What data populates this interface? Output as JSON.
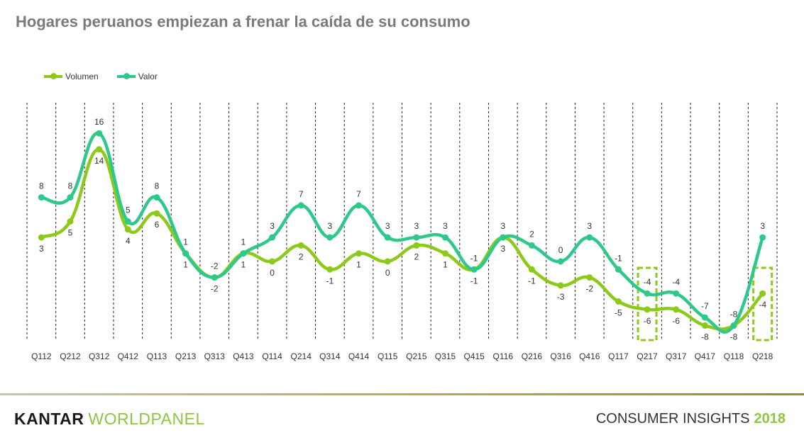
{
  "title": "Hogares peruanos empiezan a frenar la caída de su consumo",
  "footer": {
    "brand_part1": "KANTAR",
    "brand_part2": "WORLDPANEL",
    "insights_text": "CONSUMER INSIGHTS",
    "insights_year": "2018"
  },
  "colors": {
    "volumen": "#8dc919",
    "valor": "#2ec98a",
    "highlight": "#8dc919"
  },
  "chart_data": {
    "type": "line",
    "categories": [
      "Q112",
      "Q212",
      "Q312",
      "Q412",
      "Q113",
      "Q213",
      "Q313",
      "Q413",
      "Q114",
      "Q214",
      "Q314",
      "Q414",
      "Q115",
      "Q215",
      "Q315",
      "Q415",
      "Q116",
      "Q216",
      "Q316",
      "Q416",
      "Q117",
      "Q217",
      "Q317",
      "Q417",
      "Q118",
      "Q218"
    ],
    "series": [
      {
        "name": "Volumen",
        "values": [
          3,
          5,
          14,
          4,
          6,
          1,
          -2,
          1,
          0,
          2,
          -1,
          1,
          0,
          2,
          1,
          -1,
          3,
          -1,
          -3,
          -2,
          -5,
          -6,
          -6,
          -8,
          -8,
          -4
        ]
      },
      {
        "name": "Valor",
        "values": [
          8,
          8,
          16,
          5,
          8,
          1,
          -2,
          1,
          3,
          7,
          3,
          7,
          3,
          3,
          3,
          -1,
          3,
          2,
          0,
          3,
          -1,
          -4,
          -4,
          -7,
          -8,
          3
        ]
      }
    ],
    "highlighted_categories": [
      "Q217",
      "Q218"
    ],
    "grid": "vertical-dashed",
    "legend": "top-left"
  }
}
